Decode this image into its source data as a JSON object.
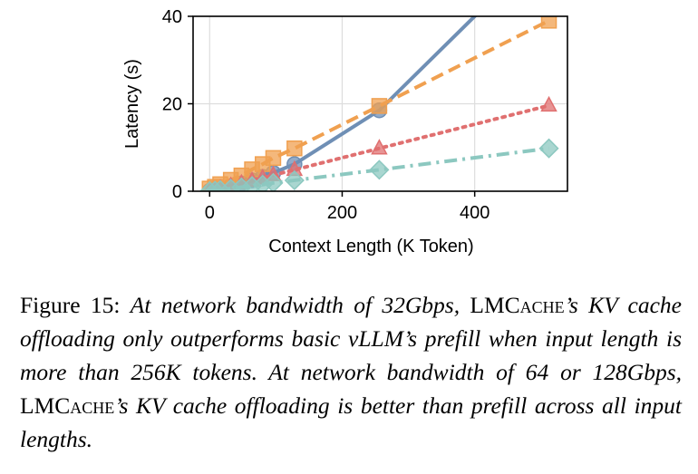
{
  "chart_data": {
    "type": "line",
    "xlabel": "Context Length (K Token)",
    "ylabel": "Latency (s)",
    "xlim": [
      -25,
      540
    ],
    "ylim": [
      0,
      40
    ],
    "xticks": [
      0,
      200,
      400
    ],
    "yticks": [
      0,
      20,
      40
    ],
    "xtick_labels": [
      "0",
      "200",
      "400"
    ],
    "ytick_labels": [
      "0",
      "20",
      "40"
    ],
    "grid": true,
    "legend": "none",
    "series": [
      {
        "color": "#6f8fb5",
        "marker": "circle",
        "line": "solid",
        "x": [
          0,
          8,
          16,
          32,
          48,
          64,
          80,
          96,
          128,
          256
        ],
        "y": [
          0.1,
          0.3,
          0.6,
          1.2,
          1.8,
          2.5,
          3.3,
          4.2,
          6.2,
          18.5
        ],
        "extend_to": [
          420,
          43
        ]
      },
      {
        "color": "#f0a050",
        "marker": "square",
        "line": "dashed",
        "x": [
          0,
          8,
          16,
          32,
          48,
          64,
          80,
          96,
          128,
          256,
          512
        ],
        "y": [
          0.6,
          1.0,
          1.6,
          2.6,
          3.6,
          5.0,
          6.2,
          7.6,
          9.8,
          19.5,
          39
        ]
      },
      {
        "color": "#e07070",
        "marker": "triangle",
        "line": "dotted",
        "x": [
          0,
          8,
          16,
          32,
          48,
          64,
          80,
          96,
          128,
          256,
          512
        ],
        "y": [
          0.1,
          0.3,
          0.6,
          1.2,
          1.8,
          2.4,
          3.0,
          3.7,
          4.9,
          9.8,
          19.6
        ]
      },
      {
        "color": "#8cc8c0",
        "marker": "diamond",
        "line": "dashdot",
        "x": [
          0,
          8,
          16,
          32,
          48,
          64,
          80,
          96,
          128,
          256,
          512
        ],
        "y": [
          0.05,
          0.15,
          0.3,
          0.6,
          0.9,
          1.2,
          1.5,
          1.9,
          2.5,
          4.9,
          9.8
        ]
      }
    ]
  },
  "caption": {
    "label": "Figure 15:",
    "part1": "At network bandwidth of 32Gbps,",
    "brand_first": "LMC",
    "brand_rest": "ache",
    "part2": "’s KV cache offloading only outperforms basic vLLM’s prefill when input length is more than 256K tokens. At network bandwidth of 64 or 128Gbps,",
    "part3": "’s KV cache offloading is better than prefill across all input lengths."
  }
}
